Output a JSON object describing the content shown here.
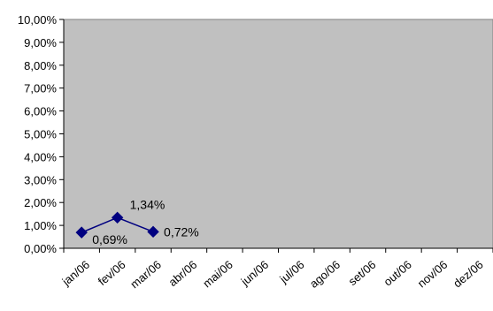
{
  "chart_data": {
    "type": "line",
    "title": "",
    "xlabel": "",
    "ylabel": "",
    "categories": [
      "jan/06",
      "fev/06",
      "mar/06",
      "abr/06",
      "mai/06",
      "jun/06",
      "jul/06",
      "ago/06",
      "set/06",
      "out/06",
      "nov/06",
      "dez/06"
    ],
    "series": [
      {
        "values": [
          0.69,
          1.34,
          0.72,
          null,
          null,
          null,
          null,
          null,
          null,
          null,
          null,
          null
        ]
      }
    ],
    "data_labels": [
      "0,69%",
      "1,34%",
      "0,72%"
    ],
    "ylim": [
      0,
      10
    ],
    "yticks": [
      "0,00%",
      "1,00%",
      "2,00%",
      "3,00%",
      "4,00%",
      "5,00%",
      "6,00%",
      "7,00%",
      "8,00%",
      "9,00%",
      "10,00%"
    ],
    "grid": false,
    "legend": "none",
    "colors": {
      "plot_background": "#c0c0c0",
      "line": "#000080",
      "marker": "#000080"
    }
  }
}
